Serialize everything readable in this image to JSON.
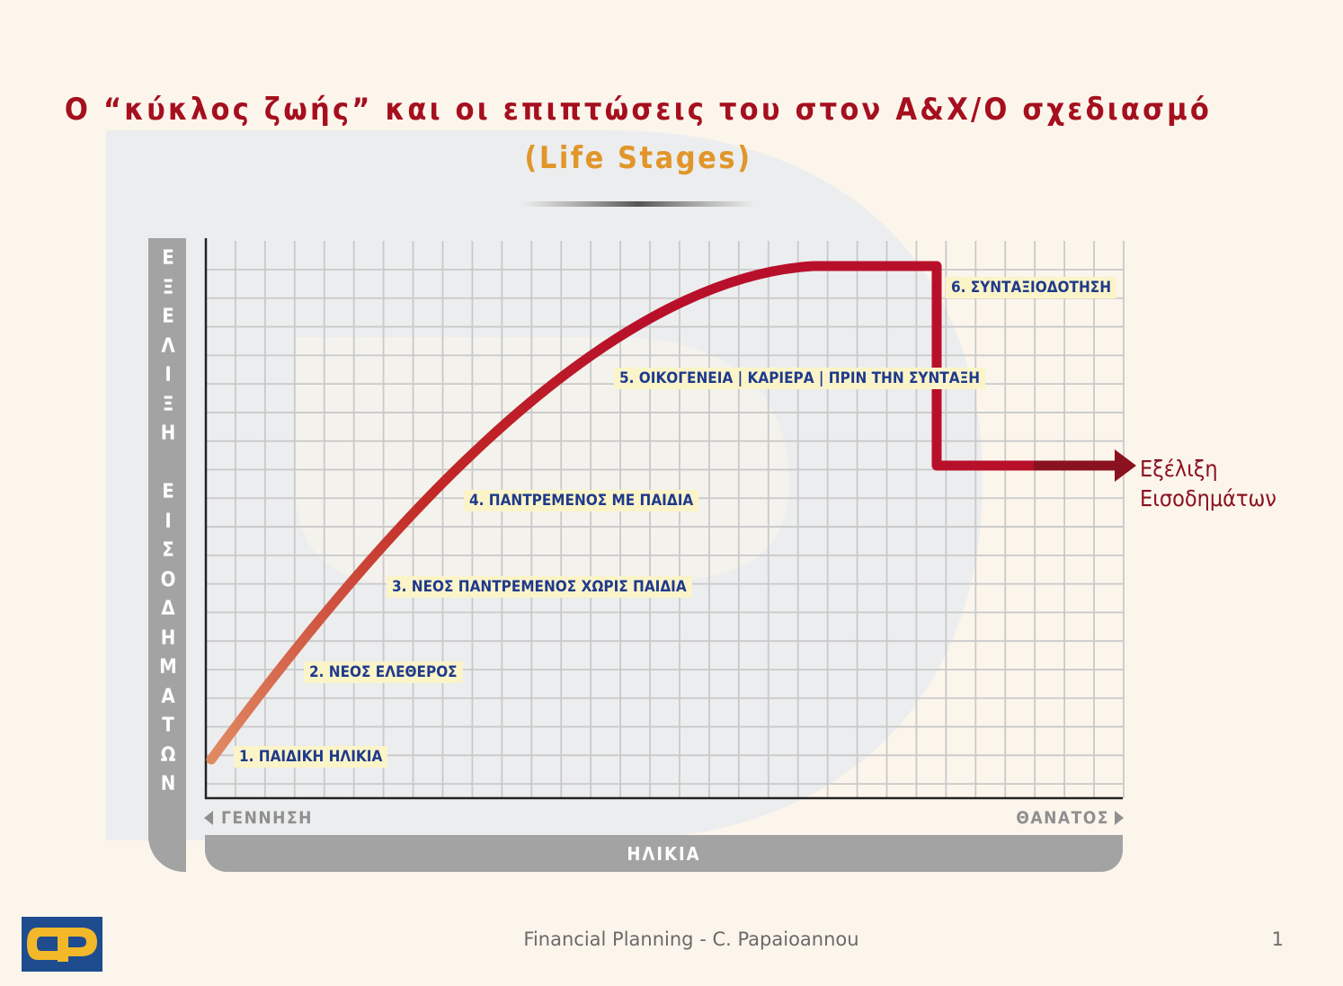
{
  "title": "Ο “κύκλος ζωής” και οι επιπτώσεις του στον Α&Χ/Ο σχεδιασμό",
  "subtitle": "(Life Stages)",
  "chart": {
    "y_axis_title": "Ε\nΞ\nΕ\nΛ\nΙ\nΞ\nΗ\n\nΕ\nΙ\nΣ\nΟ\nΔ\nΗ\nΜ\nΑ\nΤ\nΩ\nΝ",
    "x_axis_title": "ΗΛΙΚΙΑ",
    "x_start_label": "ΓΕΝΝΗΣΗ",
    "x_end_label": "ΘΑΝΑΤΟΣ",
    "income_label_line1": "Εξέλιξη",
    "income_label_line2": "Εισοδημάτων",
    "stages": [
      {
        "label": "1. ΠΑΙΔΙΚΗ ΗΛΙΚΙΑ"
      },
      {
        "label": "2. ΝΕΟΣ ΕΛΕΘΕΡΟΣ"
      },
      {
        "label": "3. ΝΕΟΣ ΠΑΝΤΡΕΜΕΝΟΣ ΧΩΡΙΣ ΠΑΙΔΙΑ"
      },
      {
        "label": "4. ΠΑΝΤΡΕΜΕΝΟΣ ΜΕ ΠΑΙΔΙΑ"
      },
      {
        "label": "5. ΟΙΚΟΓΕΝΕΙΑ | ΚΑΡΙΕΡΑ | ΠΡΙΝ ΤΗΝ ΣΥΝΤΑΞΗ"
      },
      {
        "label": "6. ΣΥΝΤΑΞΙΟΔΟΤΗΣΗ"
      }
    ]
  },
  "footer": "Financial Planning - C. Papaioannou",
  "page_number": "1",
  "colors": {
    "title": "#a50f1e",
    "subtitle": "#e1962a",
    "curve_start": "#e08a62",
    "curve_end": "#b8102a",
    "axis_bar": "#a3a3a3",
    "stage_text": "#1f3a8c",
    "stage_bg": "#fbf4c9",
    "logo_bg": "#1e4c8f",
    "logo_fg": "#f2b82a"
  }
}
